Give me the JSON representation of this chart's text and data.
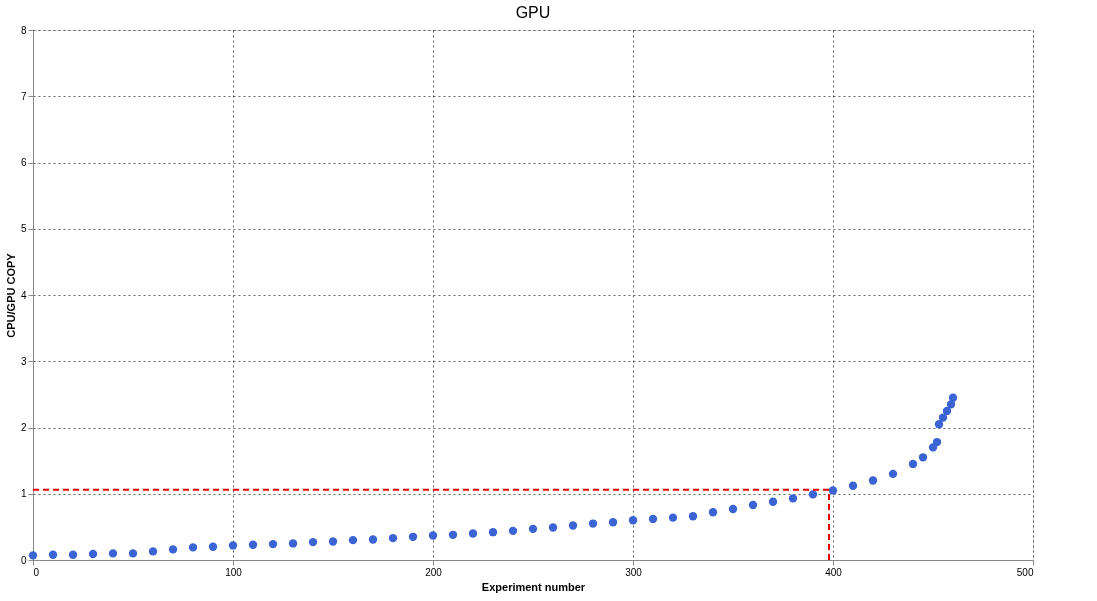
{
  "chart_data": {
    "type": "scatter",
    "title": "GPU",
    "xlabel": "Experiment number",
    "ylabel": "CPU/GPU COPY",
    "x": [
      0,
      10,
      20,
      30,
      40,
      50,
      60,
      70,
      80,
      90,
      100,
      110,
      120,
      130,
      140,
      150,
      160,
      170,
      180,
      190,
      200,
      210,
      220,
      230,
      240,
      250,
      260,
      270,
      280,
      290,
      300,
      310,
      320,
      330,
      340,
      350,
      360,
      370,
      380,
      390,
      400,
      410,
      420,
      430,
      440,
      445,
      450,
      452,
      453,
      455,
      457,
      459,
      460
    ],
    "series": [
      {
        "color": "#3a63d4",
        "values": [
          0.07,
          0.08,
          0.08,
          0.09,
          0.1,
          0.1,
          0.13,
          0.16,
          0.19,
          0.2,
          0.22,
          0.23,
          0.24,
          0.25,
          0.27,
          0.28,
          0.3,
          0.31,
          0.33,
          0.35,
          0.37,
          0.38,
          0.4,
          0.42,
          0.44,
          0.47,
          0.49,
          0.52,
          0.55,
          0.57,
          0.6,
          0.62,
          0.64,
          0.66,
          0.72,
          0.77,
          0.83,
          0.88,
          0.93,
          0.99,
          1.05,
          1.12,
          1.2,
          1.3,
          1.45,
          1.55,
          1.7,
          1.78,
          2.05,
          2.15,
          2.25,
          2.35,
          2.45
        ]
      }
    ],
    "xlim": [
      0,
      500
    ],
    "ylim": [
      0,
      8
    ],
    "xticks": [
      0,
      100,
      200,
      300,
      400,
      500
    ],
    "yticks": [
      0,
      1,
      2,
      3,
      4,
      5,
      6,
      7,
      8
    ],
    "ref_lines": [
      {
        "axis": "y",
        "value": 1.06,
        "color": "#e00000",
        "line_style": "dashed"
      },
      {
        "axis": "x",
        "value": 398,
        "color": "#e00000",
        "line_style": "dashed"
      }
    ],
    "grid": true,
    "marker": "circle"
  }
}
